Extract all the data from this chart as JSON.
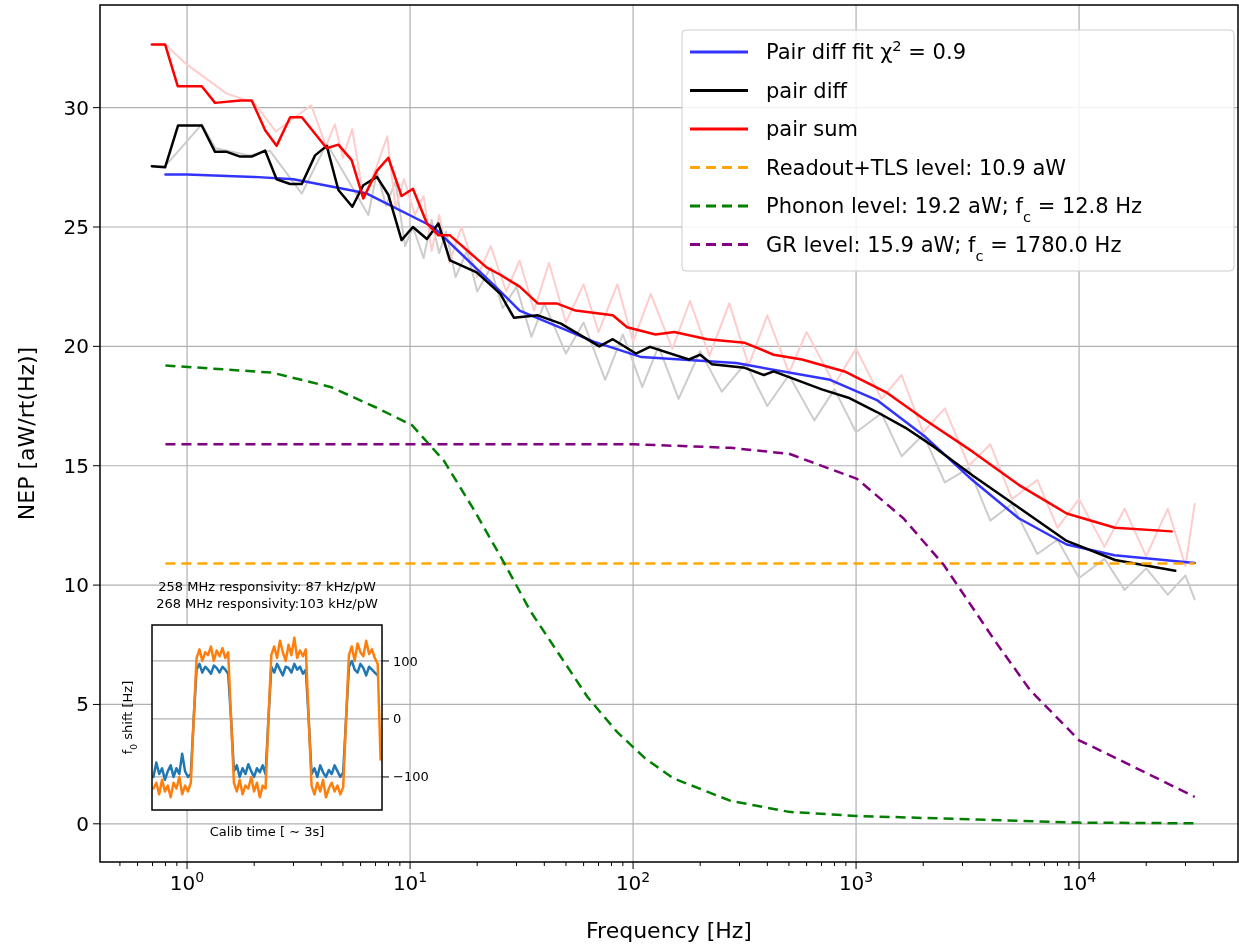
{
  "chart_data": [
    {
      "type": "line",
      "xlabel": "Frequency [Hz]",
      "ylabel": "NEP [aW/rt(Hz)]",
      "log": "x",
      "xlim": [
        0.407,
        51600
      ],
      "ylim": [
        -1.6,
        34.3
      ],
      "xticks": [
        {
          "value": 1,
          "label": "10$^{0}$"
        },
        {
          "value": 10,
          "label": "10$^{1}$"
        },
        {
          "value": 100,
          "label": "10$^{2}$"
        },
        {
          "value": 1000,
          "label": "10$^{3}$"
        },
        {
          "value": 10000,
          "label": "10$^{4}$"
        },
        {
          "value": 0.5,
          "label": null
        },
        {
          "value": 0.6,
          "label": null
        },
        {
          "value": 0.7,
          "label": null
        },
        {
          "value": 0.8,
          "label": null
        },
        {
          "value": 0.9,
          "label": null
        },
        {
          "value": 2,
          "label": null
        },
        {
          "value": 3,
          "label": null
        },
        {
          "value": 4,
          "label": null
        },
        {
          "value": 5,
          "label": null
        },
        {
          "value": 6,
          "label": null
        },
        {
          "value": 7,
          "label": null
        },
        {
          "value": 8,
          "label": null
        },
        {
          "value": 9,
          "label": null
        },
        {
          "value": 20,
          "label": null
        },
        {
          "value": 30,
          "label": null
        },
        {
          "value": 40,
          "label": null
        },
        {
          "value": 50,
          "label": null
        },
        {
          "value": 60,
          "label": null
        },
        {
          "value": 70,
          "label": null
        },
        {
          "value": 80,
          "label": null
        },
        {
          "value": 90,
          "label": null
        },
        {
          "value": 200,
          "label": null
        },
        {
          "value": 300,
          "label": null
        },
        {
          "value": 400,
          "label": null
        },
        {
          "value": 500,
          "label": null
        },
        {
          "value": 600,
          "label": null
        },
        {
          "value": 700,
          "label": null
        },
        {
          "value": 800,
          "label": null
        },
        {
          "value": 900,
          "label": null
        },
        {
          "value": 2000,
          "label": null
        },
        {
          "value": 3000,
          "label": null
        },
        {
          "value": 4000,
          "label": null
        },
        {
          "value": 5000,
          "label": null
        },
        {
          "value": 6000,
          "label": null
        },
        {
          "value": 7000,
          "label": null
        },
        {
          "value": 8000,
          "label": null
        },
        {
          "value": 9000,
          "label": null
        },
        {
          "value": 20000,
          "label": null
        },
        {
          "value": 30000,
          "label": null
        },
        {
          "value": 40000,
          "label": null
        }
      ],
      "yticks": [
        0,
        5,
        10,
        15,
        20,
        25,
        30
      ],
      "grid": true,
      "legend": "top right",
      "series": [
        {
          "color": "#cccccc",
          "x": [
            0.695,
            0.797,
            1.164,
            1.34,
            1.9,
            2.35,
            3.27,
            4.23,
            6.5,
            7.1,
            7.8,
            8.6,
            9.5,
            10.3,
            11.5,
            12.5,
            13.5,
            14.5,
            16,
            18,
            20,
            23,
            26,
            30,
            35,
            40,
            50,
            60,
            75,
            90,
            110,
            130,
            160,
            200,
            250,
            320,
            400,
            500,
            650,
            800,
            1000,
            1300,
            1600,
            2000,
            2500,
            3200,
            4000,
            5000,
            6500,
            8000,
            10000,
            13000,
            16000,
            20000,
            25000,
            30000,
            33000
          ],
          "values": [
            27.55,
            27.55,
            29.3,
            28.3,
            28.0,
            28.2,
            26.4,
            28.5,
            25.5,
            27.3,
            25.9,
            26.9,
            24.2,
            25.0,
            23.7,
            25.3,
            23.9,
            24.8,
            22.9,
            24.0,
            22.3,
            23.3,
            21.6,
            22.5,
            20.4,
            21.8,
            19.7,
            21.0,
            18.6,
            20.5,
            18.3,
            20.0,
            17.8,
            19.8,
            18.1,
            19.3,
            17.5,
            18.8,
            16.9,
            18.2,
            16.4,
            17.2,
            15.4,
            16.3,
            14.3,
            14.9,
            12.7,
            13.4,
            11.3,
            11.9,
            10.3,
            11.1,
            9.8,
            10.7,
            9.6,
            10.4,
            9.4
          ]
        },
        {
          "color": "#ffcccc",
          "x": [
            0.695,
            0.797,
            1.0,
            1.5,
            2.0,
            2.5,
            3.6,
            4.2,
            4.6,
            5.0,
            5.5,
            6.2,
            7.0,
            7.9,
            8.6,
            9.4,
            10.5,
            11.5,
            12.5,
            13.5,
            15,
            17,
            20,
            23,
            27,
            31,
            36,
            42,
            50,
            60,
            70,
            85,
            100,
            120,
            150,
            180,
            220,
            270,
            330,
            400,
            500,
            600,
            800,
            1000,
            1300,
            1600,
            2000,
            2500,
            3200,
            4000,
            5000,
            6500,
            8000,
            10000,
            13000,
            16000,
            20000,
            25000,
            30000,
            33000
          ],
          "values": [
            32.65,
            32.65,
            31.8,
            30.6,
            30.2,
            29.0,
            30.1,
            28.4,
            29.3,
            27.9,
            29.1,
            26.2,
            27.4,
            28.8,
            25.8,
            27.0,
            25.5,
            26.3,
            24.0,
            25.5,
            23.5,
            25.0,
            22.9,
            24.2,
            22.3,
            23.6,
            21.5,
            23.5,
            21.0,
            22.6,
            20.6,
            22.6,
            20.2,
            22.2,
            19.9,
            21.9,
            19.6,
            21.8,
            19.2,
            21.3,
            18.9,
            20.6,
            18.4,
            19.9,
            17.8,
            18.8,
            16.4,
            17.4,
            15.0,
            15.9,
            13.6,
            14.4,
            12.4,
            13.6,
            11.6,
            13.2,
            11.2,
            13.2,
            10.8,
            13.4
          ]
        },
        {
          "name": "Pair diff fit χ$^{2}$ = 0.9",
          "color": "#3333ff",
          "x": [
            0.8,
            1,
            2,
            3,
            5,
            6.4,
            12.7,
            25.4,
            31,
            66.6,
            109,
            290,
            765,
            1240,
            2050,
            3320,
            5360,
            8800,
            14400,
            33000
          ],
          "values": [
            27.2,
            27.2,
            27.1,
            27.0,
            26.6,
            26.4,
            25.0,
            22.3,
            21.5,
            20.2,
            19.55,
            19.3,
            18.6,
            17.75,
            16.2,
            14.4,
            12.8,
            11.7,
            11.25,
            10.93
          ]
        },
        {
          "name": "pair diff",
          "color": "#000000",
          "x": [
            0.695,
            0.797,
            0.911,
            1.164,
            1.335,
            1.507,
            1.73,
            1.95,
            2.24,
            2.52,
            2.9,
            3.27,
            3.75,
            4.23,
            4.77,
            5.51,
            6.17,
            7.1,
            7.99,
            9.16,
            10.3,
            11.9,
            13.4,
            15.1,
            19.9,
            25.4,
            29.2,
            37.4,
            47.5,
            70.6,
            81.1,
            103,
            119,
            178,
            200,
            226,
            317,
            386,
            427,
            702,
            924,
            1240,
            1660,
            2230,
            3320,
            5360,
            8800,
            14500,
            27000
          ],
          "values": [
            27.55,
            27.5,
            29.25,
            29.25,
            28.15,
            28.15,
            27.95,
            27.95,
            28.2,
            27.0,
            26.8,
            26.8,
            28.0,
            28.4,
            26.55,
            25.85,
            26.75,
            27.1,
            26.35,
            24.45,
            25.0,
            24.5,
            25.15,
            23.6,
            23.1,
            22.2,
            21.2,
            21.3,
            20.95,
            20.0,
            20.3,
            19.7,
            19.98,
            19.45,
            19.65,
            19.25,
            19.1,
            18.8,
            18.95,
            18.2,
            17.85,
            17.25,
            16.6,
            15.8,
            14.6,
            13.25,
            11.85,
            11.05,
            10.6
          ]
        },
        {
          "name": "pair sum",
          "color": "#ff0000",
          "x": [
            0.695,
            0.797,
            0.908,
            1.164,
            1.335,
            1.73,
            1.95,
            2.24,
            2.52,
            2.9,
            3.27,
            4.23,
            4.77,
            5.47,
            6.17,
            7.1,
            7.99,
            9.16,
            10.3,
            11.9,
            13.4,
            15.1,
            22.1,
            25.4,
            31,
            37.4,
            45.4,
            55.2,
            81.1,
            94,
            126,
            153,
            215,
            317,
            427,
            572,
            888,
            1380,
            2020,
            3320,
            5360,
            8800,
            14500,
            26000
          ],
          "values": [
            32.65,
            32.65,
            30.9,
            30.9,
            30.2,
            30.3,
            30.3,
            29.05,
            28.4,
            29.6,
            29.6,
            28.3,
            28.45,
            27.8,
            26.2,
            27.35,
            27.9,
            26.3,
            26.6,
            25.15,
            24.65,
            24.65,
            23.3,
            23.0,
            22.5,
            21.8,
            21.8,
            21.5,
            21.3,
            20.8,
            20.5,
            20.6,
            20.3,
            20.15,
            19.65,
            19.45,
            18.95,
            18.05,
            16.95,
            15.6,
            14.2,
            13.0,
            12.4,
            12.25
          ]
        },
        {
          "name": "Readout+TLS level: 10.9 aW",
          "color": "#ffa500",
          "line_style": "dashed",
          "x": [
            0.8,
            33000
          ],
          "values": [
            10.9,
            10.9
          ]
        },
        {
          "name": "Phonon level: 19.2 aW; f$_{c}$ = 12.8 Hz",
          "color": "#008000",
          "line_style": "dashed",
          "x": [
            0.8,
            2.4,
            4.4,
            7.0,
            10.2,
            14.2,
            19.2,
            25.8,
            34.7,
            46.6,
            62.6,
            84.7,
            113,
            152,
            274,
            501,
            1000,
            10000,
            33000
          ],
          "values": [
            19.2,
            18.9,
            18.3,
            17.45,
            16.7,
            15.2,
            13.2,
            11.1,
            8.9,
            7.1,
            5.3,
            3.85,
            2.75,
            1.9,
            0.96,
            0.5,
            0.33,
            0.05,
            0.02
          ]
        },
        {
          "name": "GR level: 15.9 aW; f$_{c}$ = 1780.0 Hz",
          "color": "#800080",
          "line_style": "dashed",
          "x": [
            0.8,
            100,
            274,
            501,
            1010,
            1630,
            2470,
            4240,
            6030,
            10000,
            16600,
            33000
          ],
          "values": [
            15.9,
            15.9,
            15.75,
            15.5,
            14.45,
            12.8,
            10.85,
            7.6,
            5.6,
            3.5,
            2.5,
            1.13
          ]
        }
      ]
    },
    {
      "type": "line",
      "title": "258 MHz responsivity: 87 kHz/pW\n268 MHz responsivity:103 kHz/pW",
      "xlabel": "Calib time [ ∼ 3s]",
      "ylabel": "f$_{0}$ shift [Hz]",
      "ylim": [
        -157,
        162
      ],
      "yticks": [
        {
          "value": -100,
          "label": "−100"
        },
        0,
        100
      ],
      "grid": "y",
      "tick_labels": "y",
      "categories": [
        null,
        null,
        null,
        null,
        null,
        null,
        null,
        null,
        null,
        null,
        null,
        null,
        null,
        null,
        null,
        null,
        null,
        null,
        null,
        null,
        null,
        null,
        null,
        null,
        null,
        null,
        null,
        null,
        null,
        null,
        null,
        null,
        null,
        null,
        null,
        null,
        null,
        null,
        null,
        null,
        null,
        null,
        null,
        null,
        null,
        null,
        null,
        null,
        null,
        null,
        null,
        null,
        null,
        null,
        null,
        null,
        null,
        null,
        null,
        null,
        null,
        null,
        null,
        null,
        null,
        null,
        null,
        null,
        null,
        null,
        null,
        null,
        null,
        null,
        null,
        null,
        null,
        null,
        null,
        null
      ],
      "series": [
        {
          "color": "#1f77b4",
          "values": [
            -100,
            -75,
            -95,
            -85,
            -105,
            -90,
            -80,
            -100,
            -85,
            -95,
            -60,
            -90,
            -100,
            -95,
            0,
            85,
            95,
            80,
            90,
            85,
            78,
            92,
            88,
            80,
            90,
            85,
            78,
            0,
            -90,
            -80,
            -100,
            -85,
            -95,
            -78,
            -90,
            -100,
            -85,
            -92,
            -80,
            -95,
            0,
            90,
            80,
            95,
            85,
            75,
            90,
            88,
            80,
            95,
            85,
            90,
            78,
            85,
            0,
            -95,
            -85,
            -100,
            -80,
            -92,
            -100,
            -88,
            -95,
            -80,
            -90,
            -100,
            -92,
            0,
            90,
            100,
            85,
            80,
            95,
            88,
            75,
            90,
            85,
            80,
            75,
            null
          ]
        },
        {
          "color": "#ff7f0e",
          "values": [
            -120,
            -110,
            -130,
            -105,
            -125,
            -115,
            -135,
            -110,
            -120,
            -100,
            -130,
            -115,
            -125,
            -110,
            0,
            105,
            120,
            100,
            115,
            110,
            125,
            100,
            118,
            108,
            122,
            105,
            115,
            0,
            -110,
            -125,
            -105,
            -130,
            -115,
            -120,
            -100,
            -125,
            -110,
            -135,
            -115,
            -120,
            0,
            110,
            125,
            105,
            135,
            115,
            100,
            128,
            110,
            140,
            105,
            118,
            108,
            120,
            0,
            -115,
            -130,
            -110,
            -125,
            -105,
            -135,
            -120,
            -110,
            -125,
            -115,
            -130,
            -118,
            0,
            110,
            125,
            100,
            130,
            115,
            108,
            135,
            112,
            120,
            105,
            95,
            -70
          ]
        }
      ]
    }
  ]
}
